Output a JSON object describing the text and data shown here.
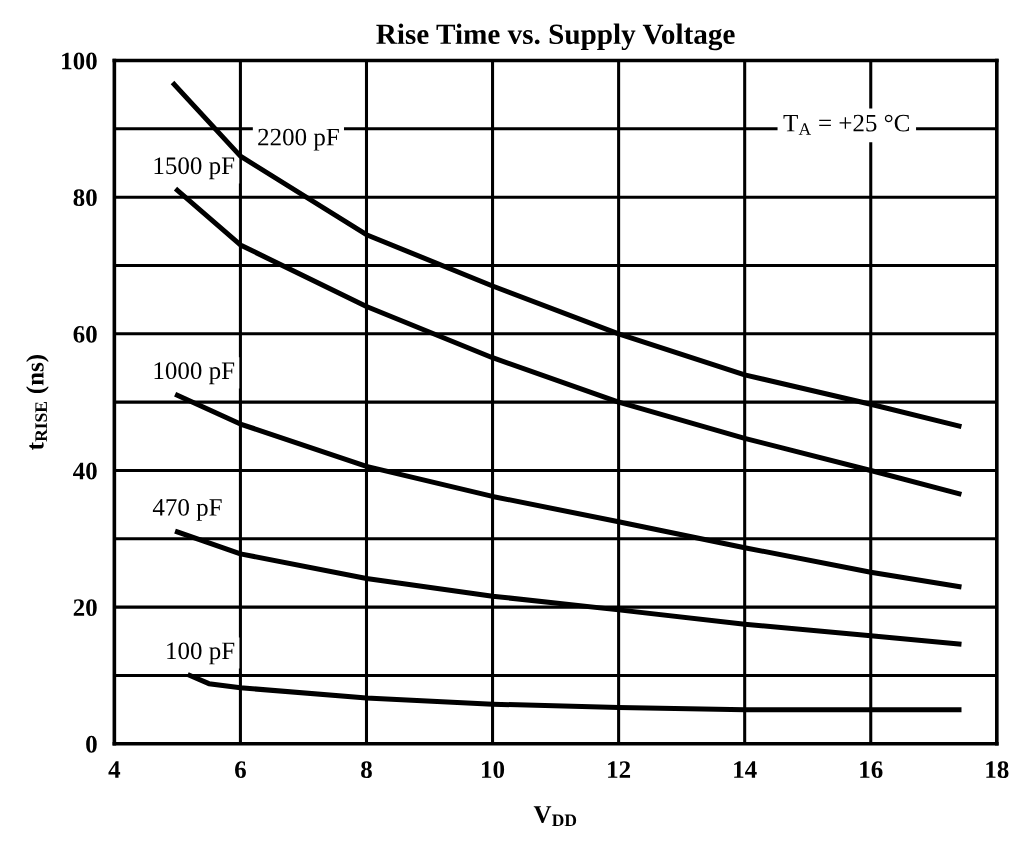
{
  "chart_data": {
    "type": "line",
    "title": "Rise Time vs. Supply Voltage",
    "xlabel": "V$_{DD}$",
    "ylabel": "t$_{RISE}$ (ns)",
    "xlim": [
      4,
      18
    ],
    "xticks": [
      4,
      6,
      8,
      10,
      12,
      14,
      16,
      18
    ],
    "ylim": [
      0,
      100
    ],
    "yticks": [
      0,
      {
        "value": 10,
        "label": null
      },
      20,
      {
        "value": 30,
        "label": null
      },
      40,
      {
        "value": 50,
        "label": null
      },
      60,
      {
        "value": 70,
        "label": null
      },
      80,
      {
        "value": 90,
        "label": null
      },
      100
    ],
    "grid": true,
    "marker": "none",
    "line_style": "solid",
    "series": [
      {
        "name": "2200 pF",
        "color": "#000000",
        "x": [
          4.95,
          6,
          8,
          10,
          12,
          14,
          16,
          17.4
        ],
        "values": [
          96.5,
          86,
          74.5,
          67,
          60,
          54,
          49.7,
          46.5
        ]
      },
      {
        "name": "1500 pF",
        "color": "#000000",
        "x": [
          5,
          6,
          8,
          10,
          12,
          14,
          16,
          17.4
        ],
        "values": [
          81,
          73,
          64,
          56.5,
          50,
          44.7,
          40,
          36.6
        ]
      },
      {
        "name": "1000 pF",
        "color": "#000000",
        "x": [
          5,
          6,
          8,
          10,
          12,
          14,
          16,
          17.4
        ],
        "values": [
          51,
          46.8,
          40.6,
          36.2,
          32.5,
          28.7,
          25.1,
          23
        ]
      },
      {
        "name": "470 pF",
        "color": "#000000",
        "x": [
          5,
          6,
          8,
          10,
          12,
          14,
          16,
          17.4
        ],
        "values": [
          31,
          27.8,
          24.2,
          21.6,
          19.6,
          17.5,
          15.8,
          14.6
        ]
      },
      {
        "name": "100 pF",
        "color": "#000000",
        "x": [
          5.2,
          5.5,
          6,
          8,
          10,
          12,
          14,
          16,
          17.4
        ],
        "values": [
          10,
          8.8,
          8.2,
          6.7,
          5.8,
          5.3,
          5,
          5,
          5
        ]
      }
    ],
    "annotations": [
      "T$_{A}$ = +25 °C"
    ]
  }
}
